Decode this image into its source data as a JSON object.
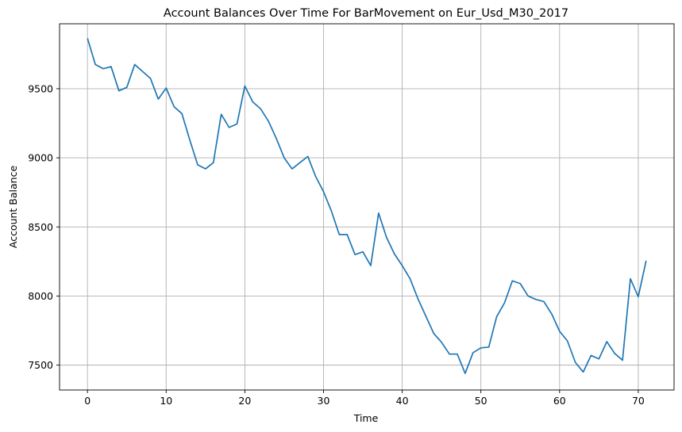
{
  "chart_data": {
    "type": "line",
    "title": "Account Balances Over Time For BarMovement on Eur_Usd_M30_2017",
    "xlabel": "Time",
    "ylabel": "Account Balance",
    "xlim": [
      -3.55,
      74.55
    ],
    "ylim": [
      7320,
      9970
    ],
    "xticks": [
      0,
      10,
      20,
      30,
      40,
      50,
      60,
      70
    ],
    "yticks": [
      7500,
      8000,
      8500,
      9000,
      9500
    ],
    "grid": true,
    "line_color": "#1f77b4",
    "series": [
      {
        "x": [
          0,
          1,
          2,
          3,
          4,
          5,
          6,
          7,
          8,
          9,
          10,
          11,
          12,
          13,
          14,
          15,
          16,
          17,
          18,
          19,
          20,
          21,
          22,
          23,
          24,
          25,
          26,
          27,
          28,
          29,
          30,
          31,
          32,
          33,
          34,
          35,
          36,
          37,
          38,
          39,
          40,
          41,
          42,
          43,
          44,
          45,
          46,
          47,
          48,
          49,
          50,
          51,
          52,
          53,
          54,
          55,
          56,
          57,
          58,
          59,
          60,
          61,
          62,
          63,
          64,
          65,
          66,
          67,
          68,
          69,
          70,
          71
        ],
        "values": [
          9865,
          9675,
          9645,
          9660,
          9485,
          9510,
          9675,
          9625,
          9575,
          9425,
          9505,
          9370,
          9320,
          9130,
          8950,
          8920,
          8965,
          9315,
          9220,
          9245,
          9520,
          9405,
          9355,
          9265,
          9140,
          9000,
          8920,
          8965,
          9010,
          8865,
          8755,
          8615,
          8445,
          8445,
          8300,
          8320,
          8220,
          8600,
          8425,
          8305,
          8220,
          8125,
          7980,
          7855,
          7730,
          7665,
          7580,
          7580,
          7440,
          7590,
          7625,
          7630,
          7850,
          7950,
          8110,
          8090,
          8000,
          7975,
          7960,
          7870,
          7745,
          7675,
          7520,
          7450,
          7570,
          7545,
          7670,
          7585,
          7535,
          8125,
          7995,
          8255
        ]
      }
    ]
  }
}
